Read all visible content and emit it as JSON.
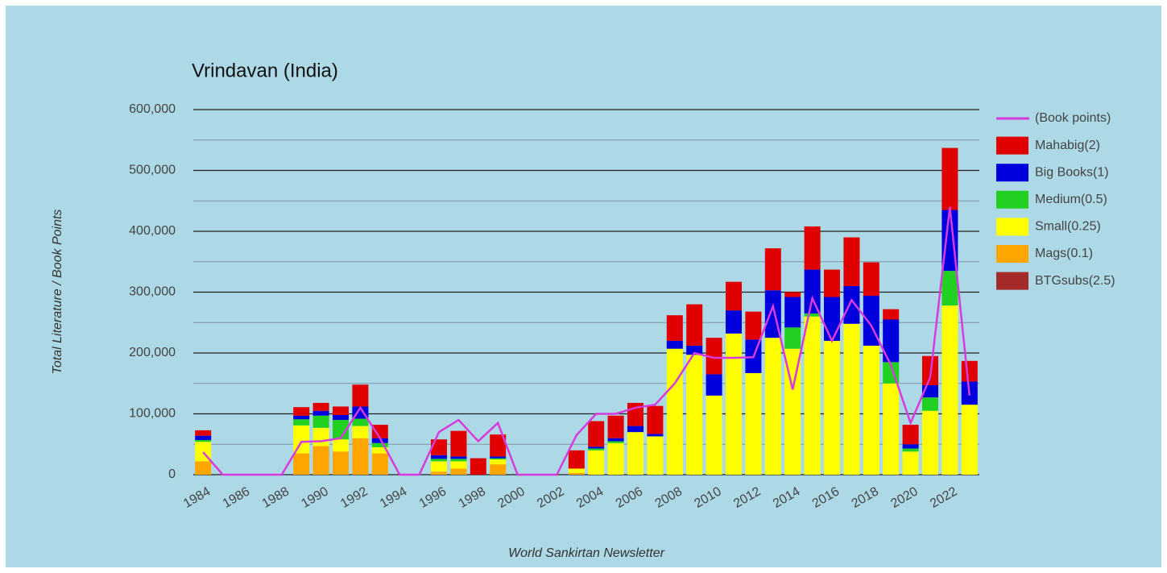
{
  "chart_data": {
    "type": "bar",
    "stacked": true,
    "title": "Vrindavan (India)",
    "x_label": "World Sankirtan Newsletter",
    "y_label": "Total Literature / Book Points",
    "categories": [
      "1984",
      null,
      "1986",
      null,
      "1988",
      null,
      "1990",
      null,
      "1992",
      null,
      "1994",
      null,
      "1996",
      null,
      "1998",
      null,
      "2000",
      null,
      "2002",
      null,
      "2004",
      null,
      "2006",
      null,
      "2008",
      null,
      "2010",
      null,
      "2012",
      null,
      "2014",
      null,
      "2016",
      null,
      "2018",
      null,
      "2020",
      null,
      "2022",
      null
    ],
    "ylim": [
      0,
      600000
    ],
    "yticks": [
      {
        "value": 0,
        "label": "0"
      },
      {
        "value": 100000,
        "label": "100,000"
      },
      {
        "value": 200000,
        "label": "200,000"
      },
      {
        "value": 300000,
        "label": "300,000"
      },
      {
        "value": 400000,
        "label": "400,000"
      },
      {
        "value": 500000,
        "label": "500,000"
      },
      {
        "value": 600000,
        "label": "600,000"
      }
    ],
    "minor_yticks": [
      50000,
      150000,
      250000,
      350000,
      450000,
      550000
    ],
    "grid": true,
    "legend": "right",
    "series": [
      {
        "name": "(Book points)",
        "type": "line",
        "color": "#d83bdc",
        "values": [
          37000,
          0,
          0,
          0,
          0,
          54000,
          55000,
          60000,
          110000,
          60000,
          0,
          0,
          70000,
          90000,
          55000,
          85000,
          0,
          0,
          0,
          65000,
          100000,
          100000,
          110000,
          115000,
          150000,
          200000,
          192000,
          192000,
          193000,
          277000,
          140000,
          290000,
          220000,
          287000,
          245000,
          180000,
          85000,
          160000,
          440000,
          130000
        ]
      },
      {
        "name": "Mahabig(2)",
        "color": "#e00000",
        "values": [
          9000,
          0,
          0,
          0,
          0,
          14000,
          13000,
          14000,
          36000,
          22000,
          0,
          0,
          26000,
          42000,
          27000,
          36000,
          0,
          0,
          0,
          30000,
          42000,
          37000,
          38000,
          46000,
          42000,
          68000,
          60000,
          47000,
          46000,
          69000,
          8000,
          71000,
          45000,
          80000,
          55000,
          17000,
          32000,
          48000,
          102000,
          34000
        ]
      },
      {
        "name": "Big Books(1)",
        "color": "#0000dd",
        "values": [
          7000,
          0,
          0,
          0,
          0,
          6000,
          8000,
          8000,
          20000,
          8000,
          0,
          0,
          6000,
          4000,
          0,
          3000,
          0,
          0,
          0,
          0,
          3000,
          5000,
          10000,
          4000,
          13000,
          15000,
          35000,
          38000,
          55000,
          78000,
          50000,
          72000,
          72000,
          62000,
          82000,
          70000,
          7000,
          20000,
          100000,
          38000
        ]
      },
      {
        "name": "Medium(0.5)",
        "color": "#22d022",
        "values": [
          3000,
          0,
          0,
          0,
          0,
          10000,
          20000,
          32000,
          12000,
          7000,
          0,
          0,
          4000,
          4000,
          0,
          2000,
          0,
          0,
          0,
          0,
          3000,
          3000,
          0,
          0,
          0,
          0,
          0,
          0,
          0,
          0,
          35000,
          5000,
          0,
          0,
          0,
          35000,
          5000,
          22000,
          57000,
          0
        ]
      },
      {
        "name": "Small(0.25)",
        "color": "#ffff00",
        "values": [
          32000,
          0,
          0,
          0,
          0,
          46000,
          30000,
          20000,
          20000,
          10000,
          0,
          0,
          17000,
          12000,
          0,
          8000,
          0,
          0,
          0,
          7000,
          40000,
          52000,
          70000,
          63000,
          207000,
          197000,
          130000,
          232000,
          167000,
          225000,
          207000,
          260000,
          220000,
          248000,
          212000,
          150000,
          38000,
          105000,
          278000,
          115000
        ]
      },
      {
        "name": "Mags(0.1)",
        "color": "#ffa500",
        "values": [
          22000,
          0,
          0,
          0,
          0,
          35000,
          47000,
          38000,
          60000,
          35000,
          0,
          0,
          5000,
          10000,
          0,
          17000,
          0,
          0,
          0,
          3000,
          0,
          0,
          0,
          0,
          0,
          0,
          0,
          0,
          0,
          0,
          0,
          0,
          0,
          0,
          0,
          0,
          0,
          0,
          0,
          0
        ]
      },
      {
        "name": "BTGsubs(2.5)",
        "color": "#a52a2a",
        "values": [
          0,
          0,
          0,
          0,
          0,
          0,
          0,
          0,
          0,
          0,
          0,
          0,
          0,
          0,
          0,
          0,
          0,
          0,
          0,
          0,
          0,
          0,
          0,
          0,
          0,
          0,
          0,
          0,
          0,
          0,
          0,
          0,
          0,
          0,
          0,
          0,
          0,
          0,
          0,
          0
        ]
      }
    ]
  }
}
